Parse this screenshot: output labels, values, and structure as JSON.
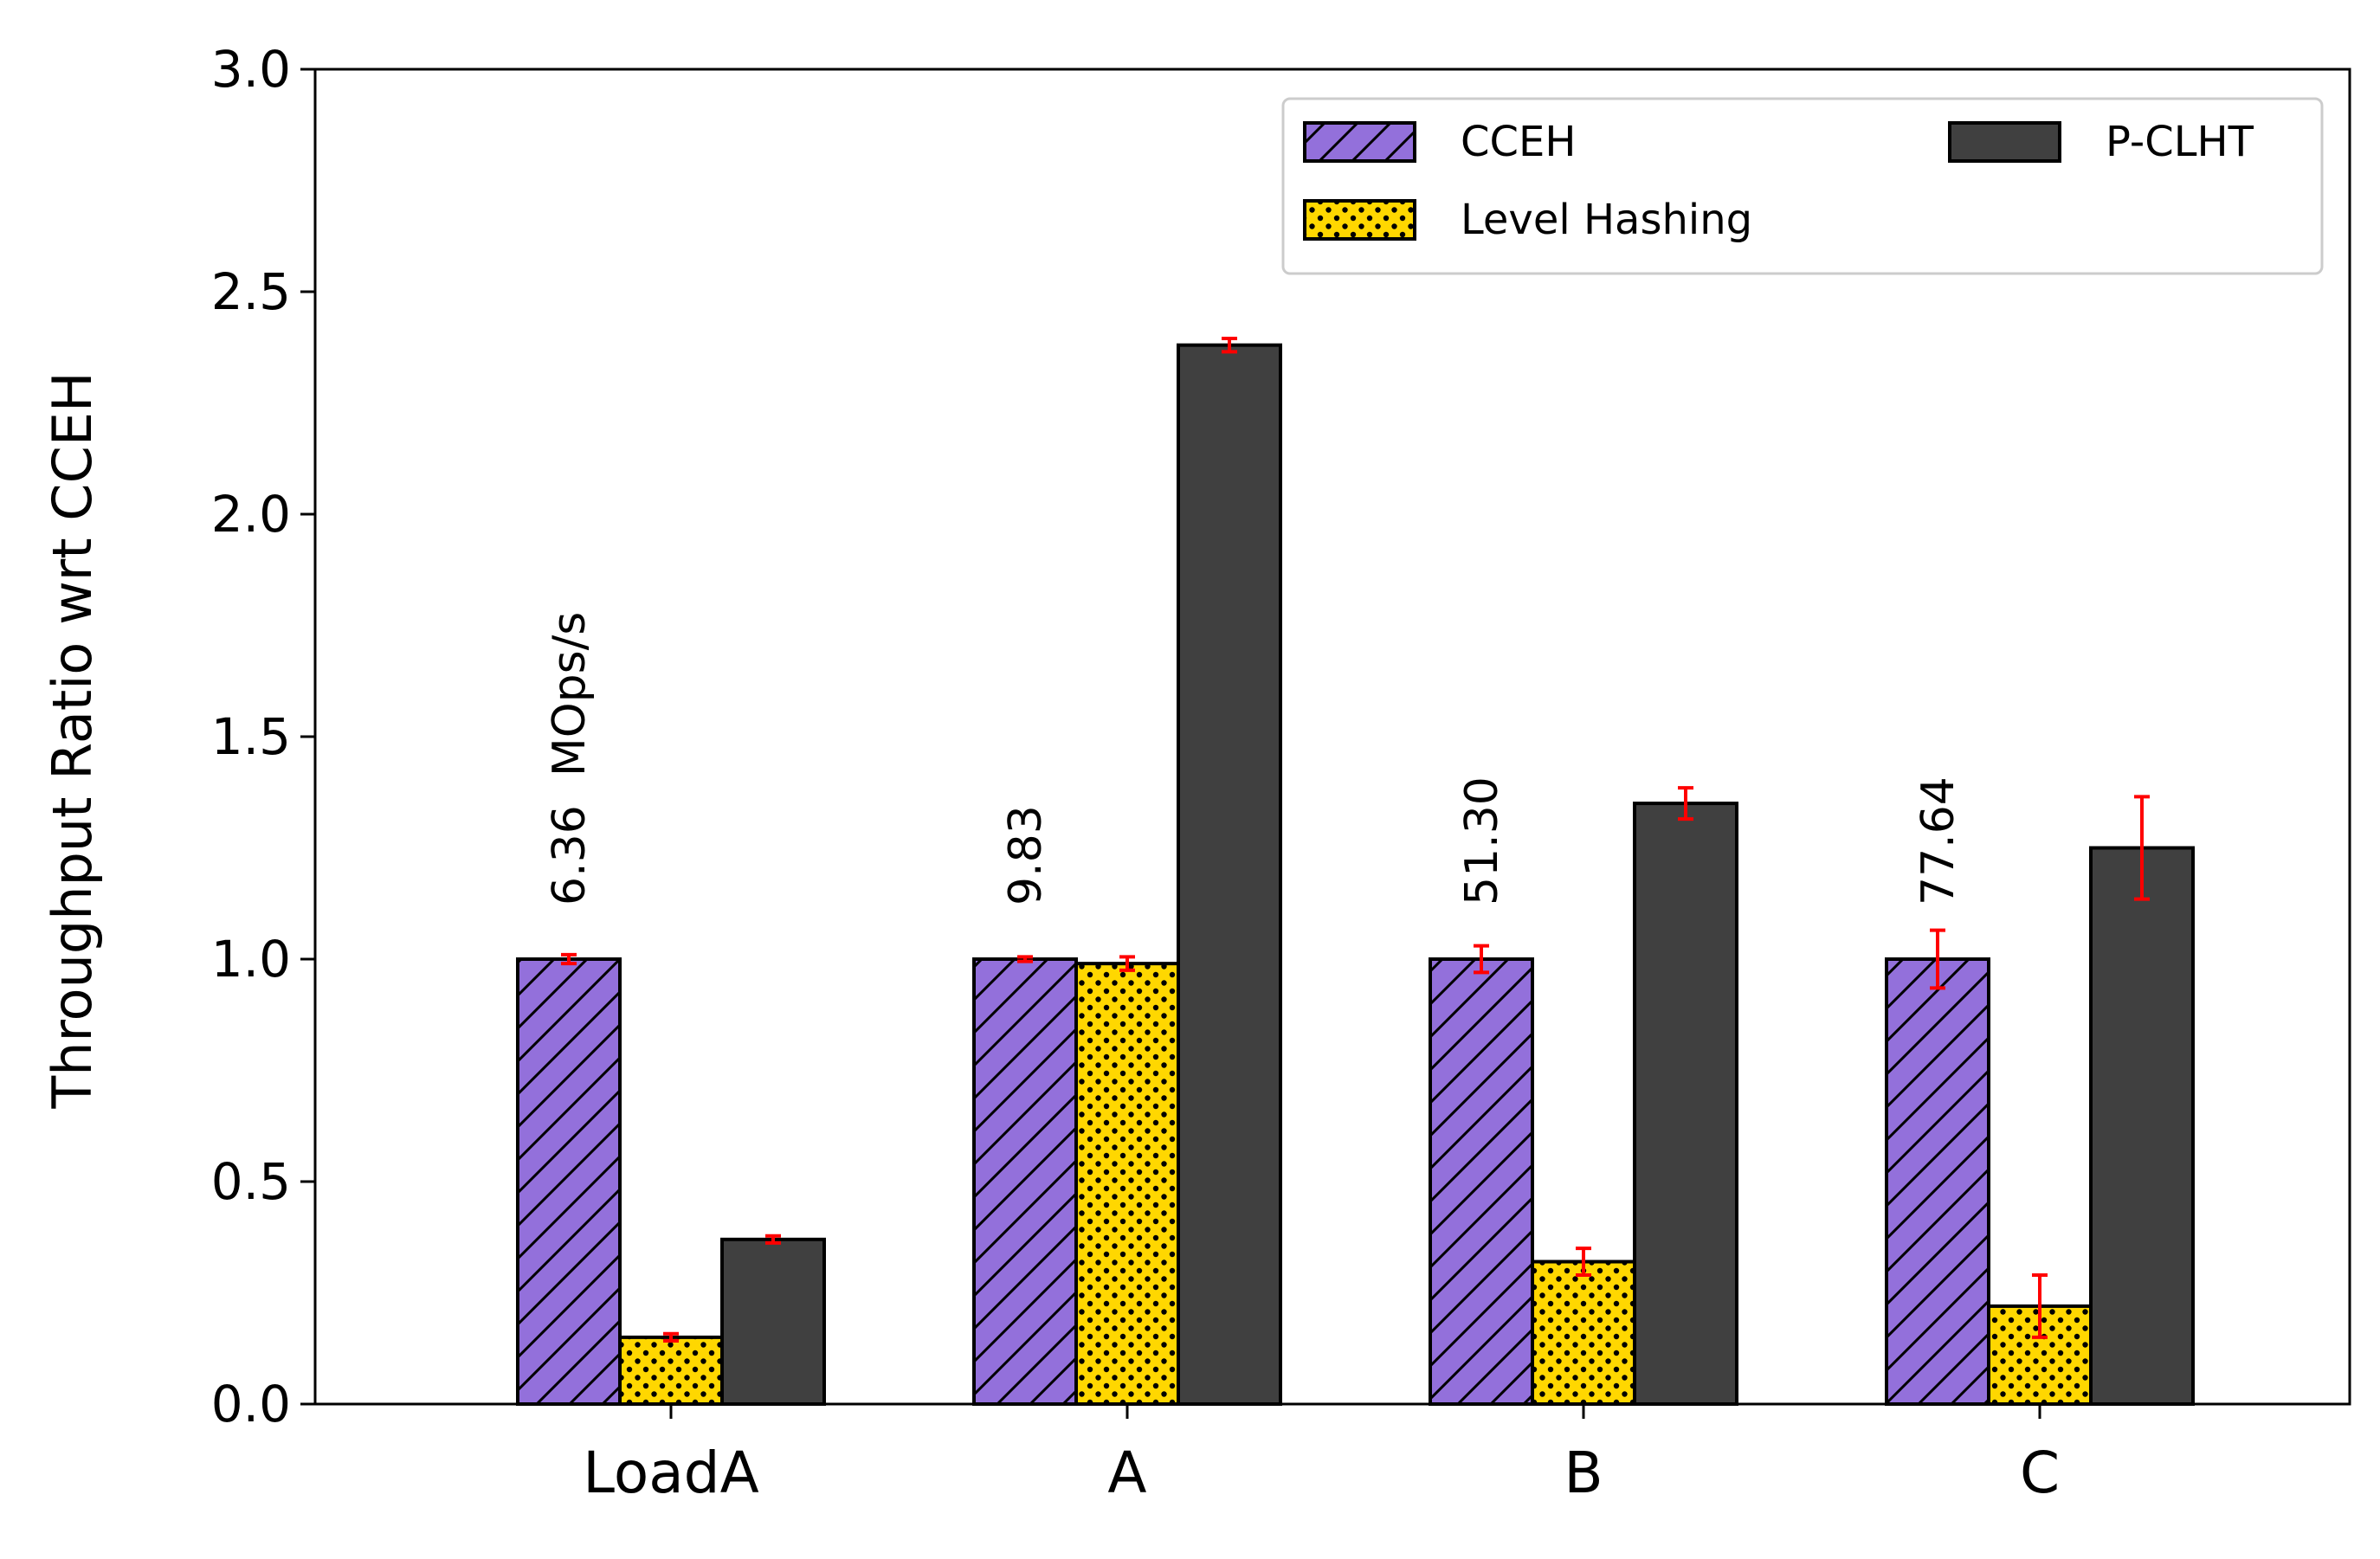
{
  "chart_data": {
    "type": "bar",
    "ylabel": "Throughput Ratio wrt CCEH",
    "xlabel": "",
    "ylim": [
      0,
      3.0
    ],
    "yticks": [
      "0.0",
      "0.5",
      "1.0",
      "1.5",
      "2.0",
      "2.5",
      "3.0"
    ],
    "categories": [
      "LoadA",
      "A",
      "B",
      "C"
    ],
    "series": [
      {
        "name": "CCEH",
        "color": "#9370DB",
        "hatch": "diagonal",
        "values": [
          1.0,
          1.0,
          1.0,
          1.0
        ],
        "errors": [
          0.01,
          0.005,
          0.03,
          0.065
        ]
      },
      {
        "name": "Level Hashing",
        "color": "#FFD700",
        "hatch": "dots",
        "values": [
          0.15,
          0.99,
          0.32,
          0.22
        ],
        "errors": [
          0.008,
          0.015,
          0.03,
          0.07
        ]
      },
      {
        "name": "P-CLHT",
        "color": "#404040",
        "hatch": "none",
        "values": [
          0.37,
          2.38,
          1.35,
          1.25
        ],
        "errors": [
          0.008,
          0.015,
          0.035,
          0.115
        ]
      }
    ],
    "annotations": [
      "6.36  MOps/s",
      "9.83",
      "51.30",
      "77.64"
    ],
    "error_bar_color": "#FF0000",
    "legend_position": "upper right",
    "grid": false
  }
}
